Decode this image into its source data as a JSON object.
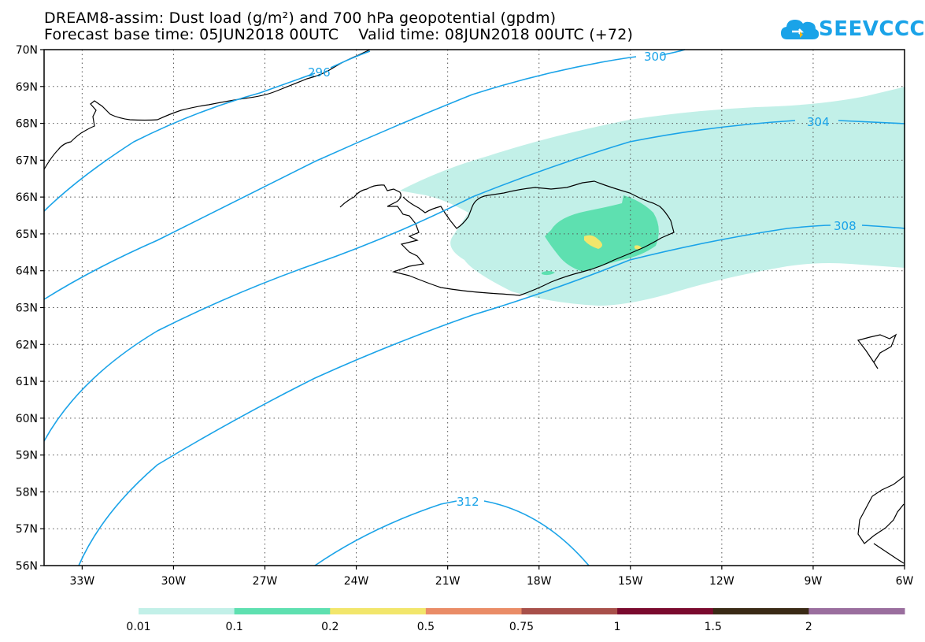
{
  "header": {
    "title_line1": "DREAM8-assim: Dust load (g/m²) and 700 hPa geopotential (gpdm)",
    "title_line2": "Forecast base time: 05JUN2018 00UTC    Valid time: 08JUN2018 00UTC (+72)"
  },
  "logo": {
    "text": "SEEVCCC",
    "icon": "cloud-icon",
    "color": "#1aa3e8"
  },
  "map": {
    "lat_labels": [
      "70N",
      "69N",
      "68N",
      "67N",
      "66N",
      "65N",
      "64N",
      "63N",
      "62N",
      "61N",
      "60N",
      "59N",
      "58N",
      "57N",
      "56N"
    ],
    "lon_labels": [
      "33W",
      "30W",
      "27W",
      "24W",
      "21W",
      "18W",
      "15W",
      "12W",
      "9W",
      "6W"
    ],
    "contour_labels": [
      "296",
      "300",
      "304",
      "308",
      "312"
    ],
    "contour_color": "#1aa3e8",
    "dust_colors": {
      "low": "#c2f0e8",
      "mid": "#5ee0b0",
      "high": "#f2e66b"
    }
  },
  "legend": {
    "labels": [
      "0.01",
      "0.1",
      "0.2",
      "0.5",
      "0.75",
      "1",
      "1.5",
      "2"
    ],
    "colors": [
      "#c2f0e8",
      "#5ee0b0",
      "#f2e66b",
      "#ea8c67",
      "#a8504a",
      "#7a0a2e",
      "#3a2a16",
      "#9a6e9e"
    ]
  }
}
